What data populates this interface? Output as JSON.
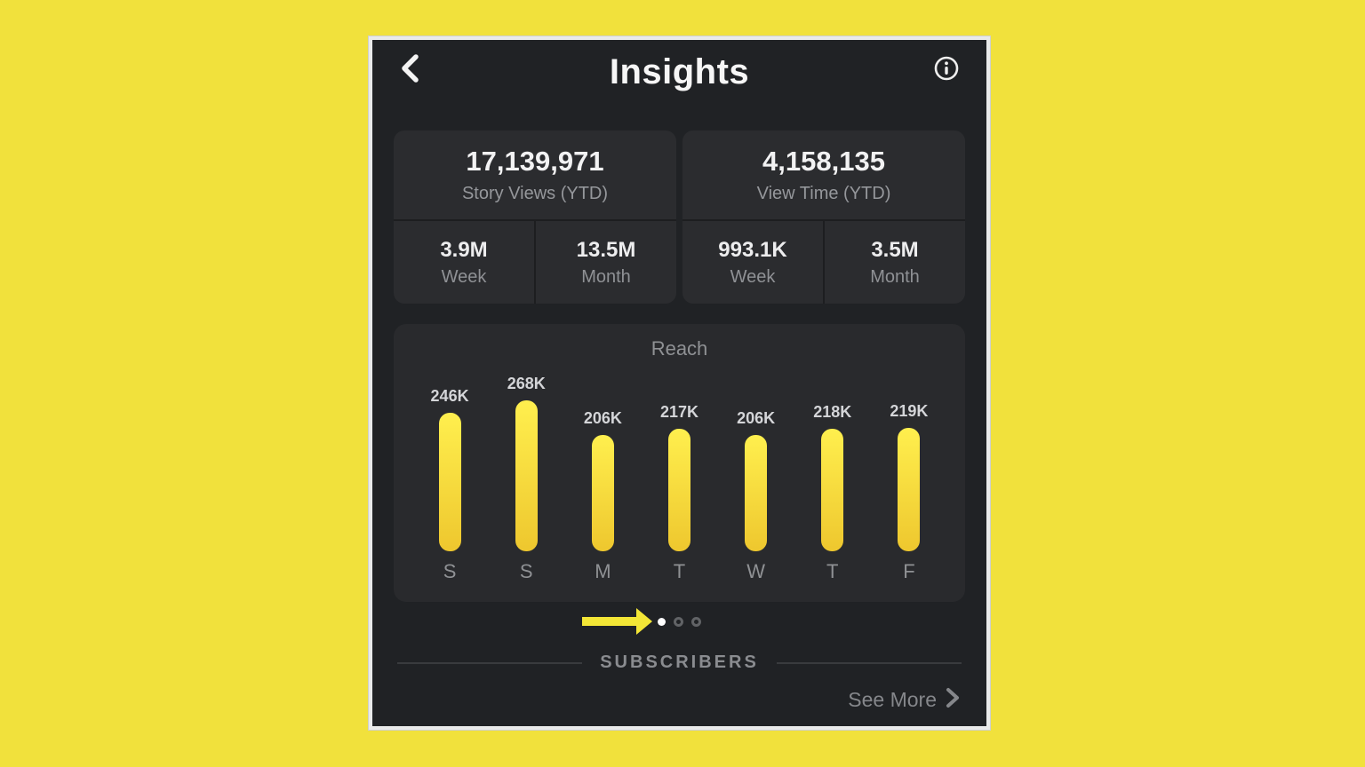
{
  "header": {
    "title": "Insights",
    "icons": {
      "back": "chevron-left",
      "info": "info-circle"
    }
  },
  "stats": [
    {
      "value": "17,139,971",
      "label": "Story Views (YTD)",
      "cells": [
        {
          "value": "3.9M",
          "label": "Week"
        },
        {
          "value": "13.5M",
          "label": "Month"
        }
      ]
    },
    {
      "value": "4,158,135",
      "label": "View Time (YTD)",
      "cells": [
        {
          "value": "993.1K",
          "label": "Week"
        },
        {
          "value": "3.5M",
          "label": "Month"
        }
      ]
    }
  ],
  "chart_data": {
    "type": "bar",
    "title": "Reach",
    "categories": [
      "S",
      "S",
      "M",
      "T",
      "W",
      "T",
      "F"
    ],
    "values": [
      246000,
      268000,
      206000,
      217000,
      206000,
      218000,
      219000
    ],
    "value_labels": [
      "246K",
      "268K",
      "206K",
      "217K",
      "206K",
      "218K",
      "219K"
    ],
    "ylim": [
      0,
      268000
    ],
    "grid": false,
    "legend": false,
    "bar_color_top": "#FFEF4E",
    "bar_color_bottom": "#EEC72E"
  },
  "pagination": {
    "dots": 3,
    "active_dot": 0,
    "arrow_icon": "arrow-right",
    "arrow_color": "#F3E636"
  },
  "subscribers": {
    "label": "SUBSCRIBERS",
    "see_more": "See More",
    "chevron_icon": "chevron-right"
  },
  "colors": {
    "page_background": "#F1E13C",
    "phone_background": "#202225",
    "card_background": "#2B2C2F",
    "chart_card_background": "#292A2D",
    "primary_text": "#F2F2F3",
    "secondary_text": "#8F9195",
    "frame_border": "#E9EAEA"
  }
}
